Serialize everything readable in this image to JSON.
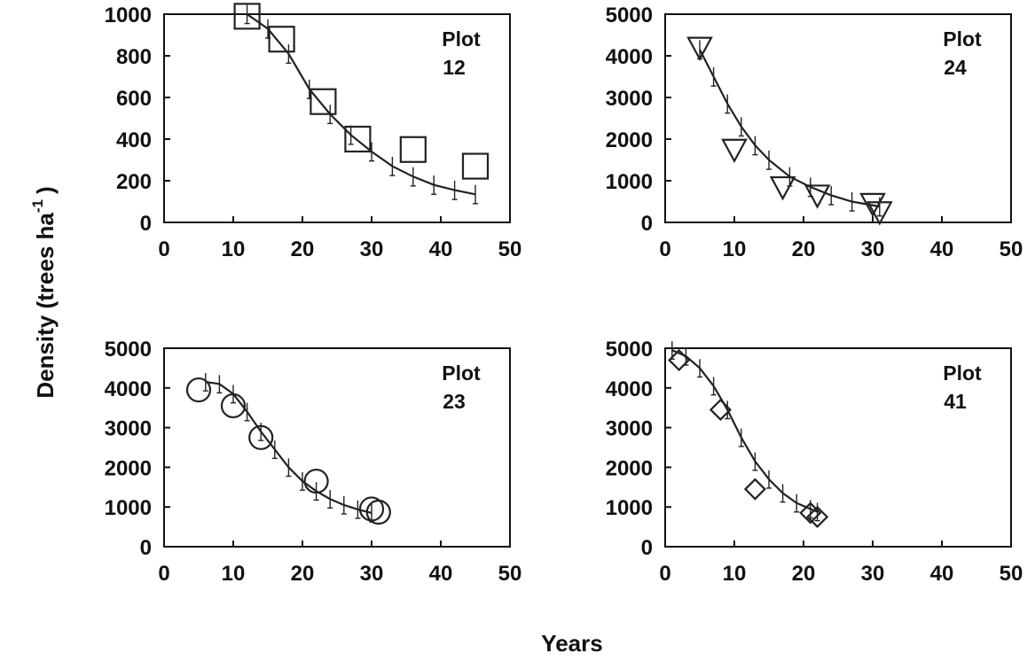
{
  "chart_data": {
    "type": "scatter",
    "xlabel": "Years",
    "ylabel": "Density (trees ha",
    "ylabel_superscript": "-1",
    "ylabel_close": ")",
    "panels": [
      {
        "label_line1": "Plot",
        "label_line2": "12",
        "marker": "square",
        "xlim": [
          0,
          50
        ],
        "ylim": [
          0,
          1000
        ],
        "xticks": [
          "0",
          "10",
          "20",
          "30",
          "40",
          "50"
        ],
        "yticks": [
          "0",
          "200",
          "400",
          "600",
          "800",
          "1000"
        ],
        "observed": [
          {
            "x": 12,
            "y": 990
          },
          {
            "x": 17,
            "y": 880
          },
          {
            "x": 23,
            "y": 580
          },
          {
            "x": 28,
            "y": 400
          },
          {
            "x": 36,
            "y": 350
          },
          {
            "x": 45,
            "y": 270
          }
        ],
        "fitted": [
          {
            "x": 12,
            "y": 1000
          },
          {
            "x": 15,
            "y": 930
          },
          {
            "x": 18,
            "y": 810
          },
          {
            "x": 21,
            "y": 640
          },
          {
            "x": 24,
            "y": 520
          },
          {
            "x": 27,
            "y": 420
          },
          {
            "x": 30,
            "y": 340
          },
          {
            "x": 33,
            "y": 270
          },
          {
            "x": 36,
            "y": 220
          },
          {
            "x": 39,
            "y": 180
          },
          {
            "x": 42,
            "y": 155
          },
          {
            "x": 45,
            "y": 135
          }
        ]
      },
      {
        "label_line1": "Plot",
        "label_line2": "24",
        "marker": "triangle-down",
        "xlim": [
          0,
          50
        ],
        "ylim": [
          0,
          5000
        ],
        "xticks": [
          "0",
          "10",
          "20",
          "30",
          "40",
          "50"
        ],
        "yticks": [
          "0",
          "1000",
          "2000",
          "3000",
          "4000",
          "5000"
        ],
        "observed": [
          {
            "x": 5,
            "y": 4200
          },
          {
            "x": 10,
            "y": 1750
          },
          {
            "x": 17,
            "y": 850
          },
          {
            "x": 22,
            "y": 650
          },
          {
            "x": 30,
            "y": 450
          },
          {
            "x": 31,
            "y": 250
          }
        ],
        "fitted": [
          {
            "x": 5,
            "y": 4150
          },
          {
            "x": 7,
            "y": 3500
          },
          {
            "x": 9,
            "y": 2850
          },
          {
            "x": 11,
            "y": 2300
          },
          {
            "x": 13,
            "y": 1850
          },
          {
            "x": 15,
            "y": 1500
          },
          {
            "x": 18,
            "y": 1100
          },
          {
            "x": 21,
            "y": 850
          },
          {
            "x": 24,
            "y": 650
          },
          {
            "x": 27,
            "y": 500
          },
          {
            "x": 31,
            "y": 380
          }
        ]
      },
      {
        "label_line1": "Plot",
        "label_line2": "23",
        "marker": "circle",
        "xlim": [
          0,
          50
        ],
        "ylim": [
          0,
          5000
        ],
        "xticks": [
          "0",
          "10",
          "20",
          "30",
          "40",
          "50"
        ],
        "yticks": [
          "0",
          "1000",
          "2000",
          "3000",
          "4000",
          "5000"
        ],
        "observed": [
          {
            "x": 5,
            "y": 3950
          },
          {
            "x": 10,
            "y": 3550
          },
          {
            "x": 14,
            "y": 2750
          },
          {
            "x": 22,
            "y": 1650
          },
          {
            "x": 30,
            "y": 950
          },
          {
            "x": 31,
            "y": 870
          }
        ],
        "fitted": [
          {
            "x": 6,
            "y": 4150
          },
          {
            "x": 8,
            "y": 4100
          },
          {
            "x": 10,
            "y": 3850
          },
          {
            "x": 12,
            "y": 3400
          },
          {
            "x": 14,
            "y": 2900
          },
          {
            "x": 16,
            "y": 2450
          },
          {
            "x": 18,
            "y": 2000
          },
          {
            "x": 20,
            "y": 1650
          },
          {
            "x": 22,
            "y": 1400
          },
          {
            "x": 24,
            "y": 1200
          },
          {
            "x": 26,
            "y": 1050
          },
          {
            "x": 28,
            "y": 940
          },
          {
            "x": 30,
            "y": 850
          }
        ]
      },
      {
        "label_line1": "Plot",
        "label_line2": "41",
        "marker": "diamond",
        "xlim": [
          0,
          50
        ],
        "ylim": [
          0,
          5000
        ],
        "xticks": [
          "0",
          "10",
          "20",
          "30",
          "40",
          "50"
        ],
        "yticks": [
          "0",
          "1000",
          "2000",
          "3000",
          "4000",
          "5000"
        ],
        "observed": [
          {
            "x": 2,
            "y": 4700
          },
          {
            "x": 8,
            "y": 3450
          },
          {
            "x": 13,
            "y": 1450
          },
          {
            "x": 21,
            "y": 850
          },
          {
            "x": 22,
            "y": 750
          }
        ],
        "fitted": [
          {
            "x": 1,
            "y": 4950
          },
          {
            "x": 3,
            "y": 4800
          },
          {
            "x": 5,
            "y": 4500
          },
          {
            "x": 7,
            "y": 4050
          },
          {
            "x": 9,
            "y": 3450
          },
          {
            "x": 11,
            "y": 2750
          },
          {
            "x": 13,
            "y": 2150
          },
          {
            "x": 15,
            "y": 1700
          },
          {
            "x": 17,
            "y": 1350
          },
          {
            "x": 19,
            "y": 1100
          },
          {
            "x": 21,
            "y": 950
          },
          {
            "x": 22,
            "y": 880
          }
        ]
      }
    ]
  }
}
